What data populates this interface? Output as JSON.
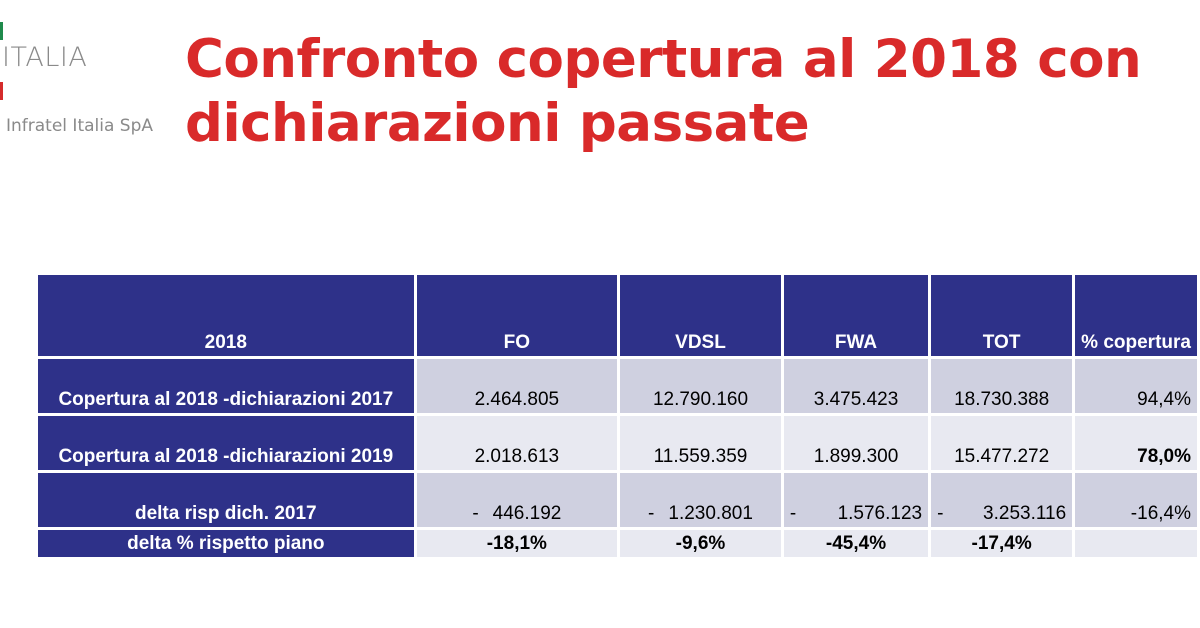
{
  "logo": {
    "brand": "ITALIA",
    "company": "Infratel Italia SpA"
  },
  "title": "Confronto copertura al 2018 con dichiarazioni passate",
  "table": {
    "headers": [
      "2018",
      "FO",
      "VDSL",
      "FWA",
      "TOT",
      "% copertura"
    ],
    "rows": [
      {
        "label": "Copertura al 2018 -dichiarazioni 2017",
        "fo": "2.464.805",
        "vdsl": "12.790.160",
        "fwa": "3.475.423",
        "tot": "18.730.388",
        "pct": "94,4%"
      },
      {
        "label": "Copertura al 2018 -dichiarazioni 2019",
        "fo": "2.018.613",
        "vdsl": "11.559.359",
        "fwa": "1.899.300",
        "tot": "15.477.272",
        "pct": "78,0%"
      },
      {
        "label": "delta risp dich. 2017",
        "sign": "-",
        "fo": "446.192",
        "vdsl": "1.230.801",
        "fwa": "1.576.123",
        "tot": "3.253.116",
        "pct": "-16,4%"
      },
      {
        "label": "delta % rispetto piano",
        "fo": "-18,1%",
        "vdsl": "-9,6%",
        "fwa": "-45,4%",
        "tot": "-17,4%",
        "pct": ""
      }
    ]
  },
  "colors": {
    "title_red": "#d92a2a",
    "header_navy": "#2e3189",
    "cell_dark": "#cfd0e0",
    "cell_light": "#e8e9f1"
  }
}
